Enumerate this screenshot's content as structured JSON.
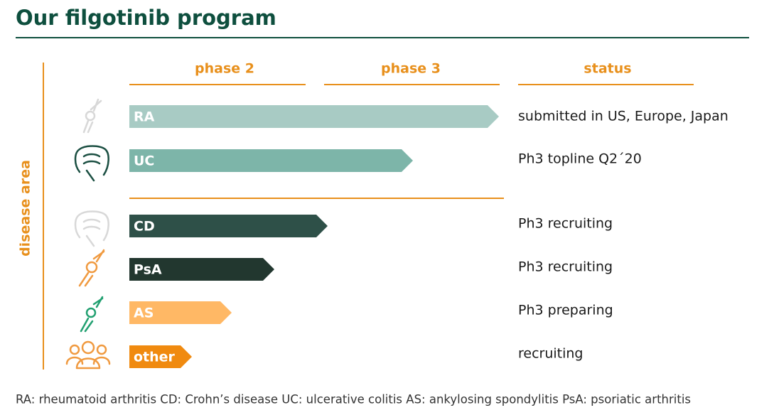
{
  "header": {
    "title": "Our filgotinib program"
  },
  "axis_label": "disease area",
  "columns": [
    "phase 2",
    "phase 3",
    "status"
  ],
  "rows": [
    {
      "label": "RA",
      "status": "submitted in US, Europe, Japan"
    },
    {
      "label": "UC",
      "status": "Ph3 topline Q2´20"
    },
    {
      "label": "CD",
      "status": "Ph3 recruiting"
    },
    {
      "label": "PsA",
      "status": "Ph3 recruiting"
    },
    {
      "label": "AS",
      "status": "Ph3 preparing"
    },
    {
      "label": "other",
      "status": "recruiting"
    }
  ],
  "footnote": "RA: rheumatoid arthritis CD: Crohn’s disease UC: ulcerative colitis AS: ankylosing spondylitis PsA: psoriatic arthritis"
}
